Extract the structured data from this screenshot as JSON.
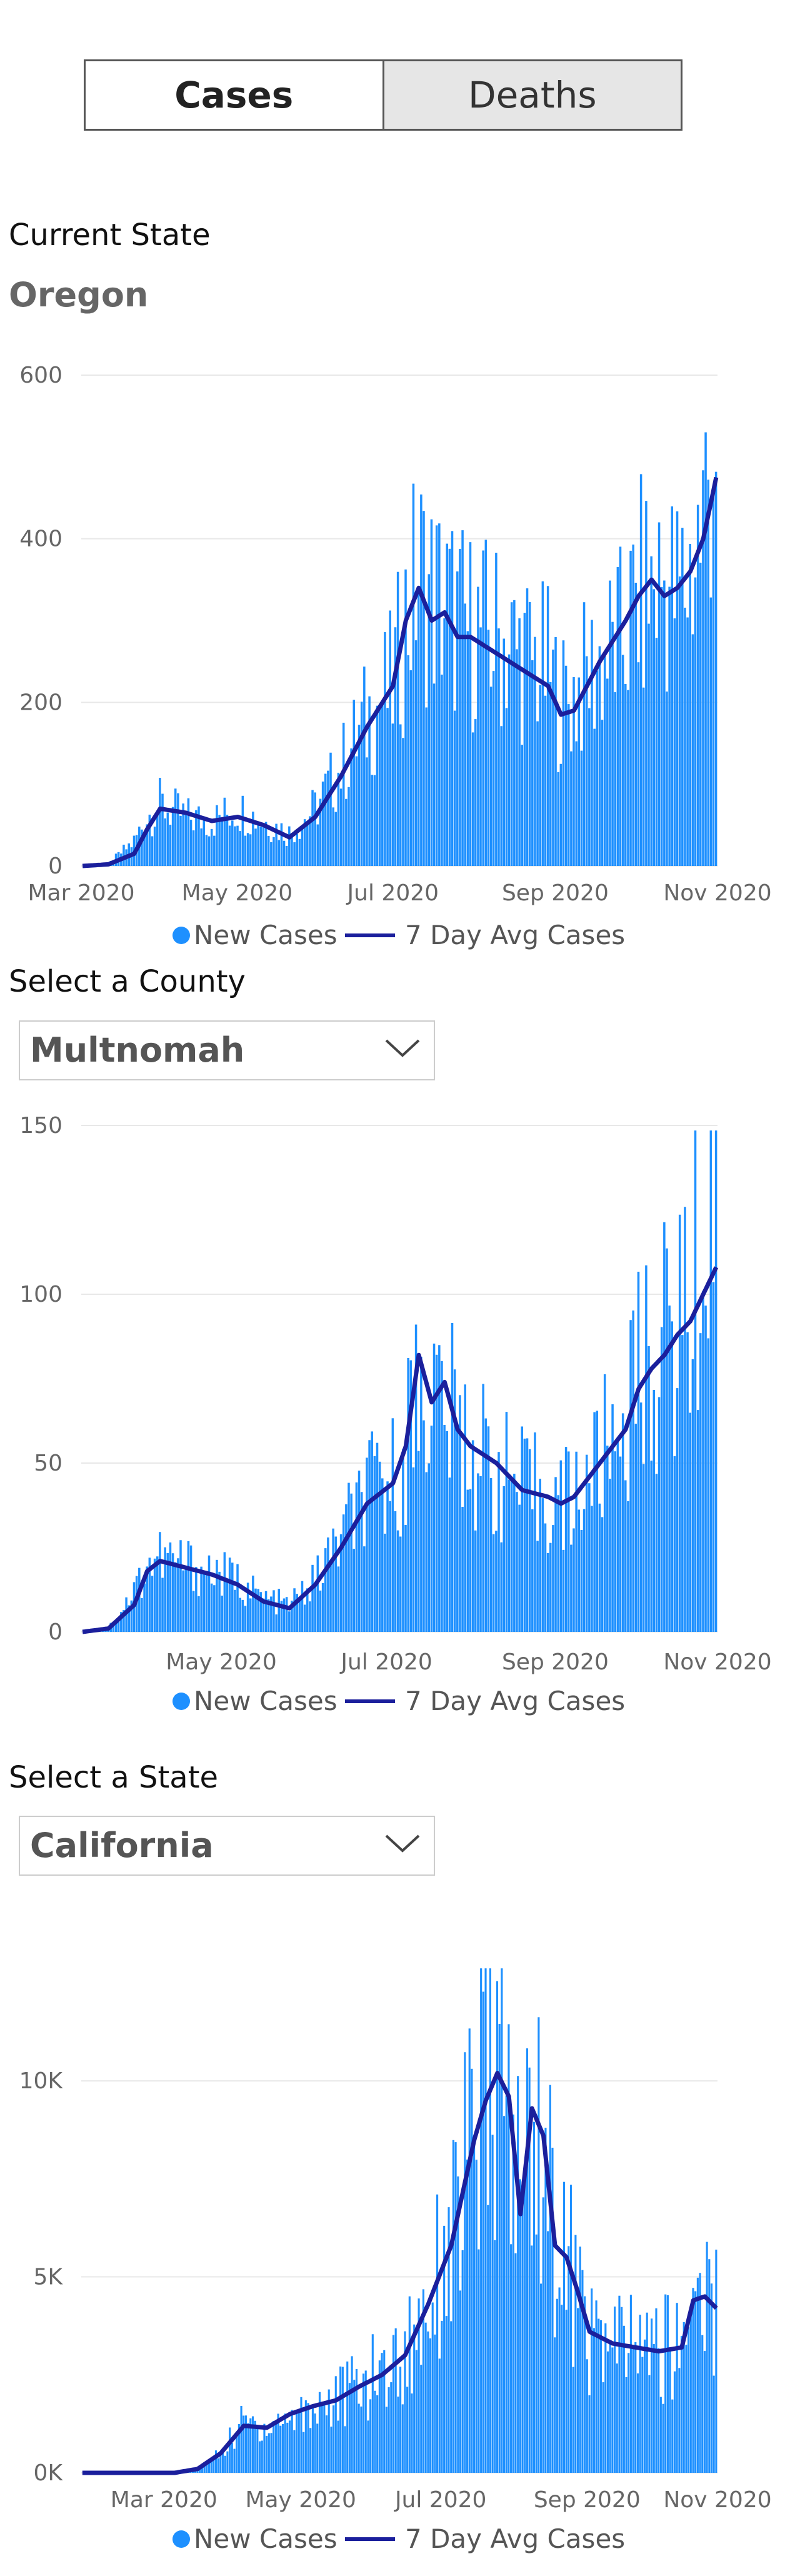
{
  "tabs": [
    {
      "label": "Cases",
      "active": true
    },
    {
      "label": "Deaths",
      "active": false
    }
  ],
  "current_state": {
    "label": "Current State",
    "name": "Oregon"
  },
  "county_select": {
    "label": "Select a County",
    "value": "Multnomah"
  },
  "state_select": {
    "label": "Select a State",
    "value": "California"
  },
  "colors": {
    "bars": "#1e90ff",
    "avg_line": "#1b1f9c",
    "grid": "#e8e8e8"
  },
  "legend": {
    "series_a": "New Cases",
    "series_b": "7 Day Avg Cases"
  },
  "chart_data": [
    {
      "type": "bar",
      "title": "",
      "x_start": "2020-03-01",
      "x_end": "2020-11-01",
      "x_ticks": [
        "Mar 2020",
        "May 2020",
        "Jul 2020",
        "Sep 2020",
        "Nov 2020"
      ],
      "y_ticks": [
        "0",
        "200",
        "400",
        "600"
      ],
      "ylim": [
        0,
        600
      ],
      "grid": true,
      "series": [
        {
          "name": "New Cases",
          "kind": "bar",
          "points": [
            [
              0,
              0
            ],
            [
              10,
              2
            ],
            [
              20,
              30
            ],
            [
              25,
              60
            ],
            [
              30,
              75
            ],
            [
              40,
              60
            ],
            [
              50,
              55
            ],
            [
              60,
              70
            ],
            [
              70,
              55
            ],
            [
              80,
              40
            ],
            [
              90,
              70
            ],
            [
              100,
              120
            ],
            [
              110,
              180
            ],
            [
              120,
              220
            ],
            [
              125,
              300
            ],
            [
              130,
              360
            ],
            [
              135,
              330
            ],
            [
              140,
              320
            ],
            [
              145,
              300
            ],
            [
              150,
              290
            ],
            [
              160,
              280
            ],
            [
              170,
              260
            ],
            [
              180,
              240
            ],
            [
              185,
              200
            ],
            [
              190,
              210
            ],
            [
              200,
              250
            ],
            [
              210,
              280
            ],
            [
              215,
              330
            ],
            [
              220,
              340
            ],
            [
              225,
              350
            ],
            [
              230,
              330
            ],
            [
              235,
              360
            ],
            [
              240,
              420
            ],
            [
              245,
              560
            ]
          ]
        },
        {
          "name": "7 Day Avg Cases",
          "kind": "line",
          "points": [
            [
              0,
              0
            ],
            [
              10,
              2
            ],
            [
              20,
              15
            ],
            [
              25,
              45
            ],
            [
              30,
              70
            ],
            [
              40,
              65
            ],
            [
              50,
              55
            ],
            [
              60,
              60
            ],
            [
              70,
              50
            ],
            [
              80,
              35
            ],
            [
              90,
              60
            ],
            [
              100,
              110
            ],
            [
              110,
              170
            ],
            [
              120,
              220
            ],
            [
              125,
              300
            ],
            [
              130,
              340
            ],
            [
              135,
              300
            ],
            [
              140,
              310
            ],
            [
              145,
              280
            ],
            [
              150,
              280
            ],
            [
              160,
              260
            ],
            [
              170,
              240
            ],
            [
              180,
              220
            ],
            [
              185,
              185
            ],
            [
              190,
              190
            ],
            [
              200,
              250
            ],
            [
              210,
              300
            ],
            [
              215,
              330
            ],
            [
              220,
              350
            ],
            [
              225,
              330
            ],
            [
              230,
              340
            ],
            [
              235,
              360
            ],
            [
              240,
              400
            ],
            [
              245,
              475
            ]
          ]
        }
      ]
    },
    {
      "type": "bar",
      "title": "",
      "x_start": "2020-03-01",
      "x_end": "2020-11-01",
      "x_ticks": [
        "May 2020",
        "Jul 2020",
        "Sep 2020",
        "Nov 2020"
      ],
      "y_ticks": [
        "0",
        "50",
        "100",
        "150"
      ],
      "ylim": [
        0,
        150
      ],
      "grid": true,
      "series": [
        {
          "name": "New Cases",
          "kind": "bar",
          "points": [
            [
              0,
              0
            ],
            [
              10,
              1
            ],
            [
              20,
              12
            ],
            [
              25,
              20
            ],
            [
              30,
              22
            ],
            [
              40,
              20
            ],
            [
              50,
              18
            ],
            [
              60,
              15
            ],
            [
              70,
              10
            ],
            [
              80,
              8
            ],
            [
              90,
              15
            ],
            [
              100,
              28
            ],
            [
              110,
              40
            ],
            [
              120,
              45
            ],
            [
              125,
              55
            ],
            [
              130,
              75
            ],
            [
              135,
              70
            ],
            [
              140,
              68
            ],
            [
              145,
              60
            ],
            [
              150,
              55
            ],
            [
              160,
              48
            ],
            [
              170,
              42
            ],
            [
              180,
              40
            ],
            [
              185,
              38
            ],
            [
              190,
              40
            ],
            [
              200,
              50
            ],
            [
              210,
              65
            ],
            [
              215,
              75
            ],
            [
              220,
              80
            ],
            [
              225,
              85
            ],
            [
              230,
              90
            ],
            [
              235,
              100
            ],
            [
              240,
              110
            ],
            [
              245,
              140
            ]
          ]
        },
        {
          "name": "7 Day Avg Cases",
          "kind": "line",
          "points": [
            [
              0,
              0
            ],
            [
              10,
              1
            ],
            [
              20,
              8
            ],
            [
              25,
              18
            ],
            [
              30,
              21
            ],
            [
              40,
              19
            ],
            [
              50,
              17
            ],
            [
              60,
              14
            ],
            [
              70,
              9
            ],
            [
              80,
              7
            ],
            [
              90,
              14
            ],
            [
              100,
              25
            ],
            [
              110,
              38
            ],
            [
              120,
              44
            ],
            [
              125,
              55
            ],
            [
              130,
              82
            ],
            [
              135,
              68
            ],
            [
              140,
              74
            ],
            [
              145,
              60
            ],
            [
              150,
              55
            ],
            [
              160,
              50
            ],
            [
              170,
              42
            ],
            [
              180,
              40
            ],
            [
              185,
              38
            ],
            [
              190,
              40
            ],
            [
              200,
              50
            ],
            [
              210,
              60
            ],
            [
              215,
              72
            ],
            [
              220,
              78
            ],
            [
              225,
              82
            ],
            [
              230,
              88
            ],
            [
              235,
              92
            ],
            [
              240,
              100
            ],
            [
              245,
              108
            ]
          ]
        }
      ]
    },
    {
      "type": "bar",
      "title": "",
      "x_start": "2020-01-22",
      "x_end": "2020-11-01",
      "x_ticks": [
        "Mar 2020",
        "May 2020",
        "Jul 2020",
        "Sep 2020",
        "Nov 2020"
      ],
      "y_ticks": [
        "0K",
        "5K",
        "10K"
      ],
      "ylim": [
        0,
        13000
      ],
      "grid": true,
      "series": [
        {
          "name": "New Cases",
          "kind": "bar",
          "points": [
            [
              0,
              0
            ],
            [
              40,
              0
            ],
            [
              50,
              100
            ],
            [
              60,
              500
            ],
            [
              70,
              1300
            ],
            [
              80,
              1200
            ],
            [
              90,
              1400
            ],
            [
              100,
              1700
            ],
            [
              110,
              1900
            ],
            [
              120,
              2200
            ],
            [
              130,
              2600
            ],
            [
              140,
              2900
            ],
            [
              150,
              4500
            ],
            [
              160,
              6000
            ],
            [
              170,
              8500
            ],
            [
              175,
              9800
            ],
            [
              180,
              10500
            ],
            [
              185,
              9000
            ],
            [
              190,
              7000
            ],
            [
              195,
              9500
            ],
            [
              200,
              8500
            ],
            [
              205,
              6000
            ],
            [
              210,
              5500
            ],
            [
              215,
              4500
            ],
            [
              220,
              3500
            ],
            [
              230,
              3200
            ],
            [
              240,
              3300
            ],
            [
              250,
              3100
            ],
            [
              260,
              3300
            ],
            [
              265,
              4800
            ],
            [
              270,
              4600
            ],
            [
              275,
              4200
            ]
          ]
        },
        {
          "name": "7 Day Avg Cases",
          "kind": "line",
          "points": [
            [
              0,
              0
            ],
            [
              40,
              0
            ],
            [
              50,
              100
            ],
            [
              60,
              500
            ],
            [
              70,
              1200
            ],
            [
              80,
              1150
            ],
            [
              90,
              1500
            ],
            [
              100,
              1700
            ],
            [
              110,
              1850
            ],
            [
              120,
              2200
            ],
            [
              130,
              2500
            ],
            [
              140,
              3000
            ],
            [
              150,
              4300
            ],
            [
              160,
              5800
            ],
            [
              170,
              8500
            ],
            [
              175,
              9500
            ],
            [
              180,
              10200
            ],
            [
              185,
              9600
            ],
            [
              190,
              6600
            ],
            [
              195,
              9300
            ],
            [
              200,
              8600
            ],
            [
              205,
              5800
            ],
            [
              210,
              5500
            ],
            [
              215,
              4600
            ],
            [
              220,
              3600
            ],
            [
              230,
              3300
            ],
            [
              240,
              3200
            ],
            [
              250,
              3100
            ],
            [
              260,
              3200
            ],
            [
              265,
              4400
            ],
            [
              270,
              4500
            ],
            [
              275,
              4200
            ]
          ]
        }
      ]
    }
  ]
}
